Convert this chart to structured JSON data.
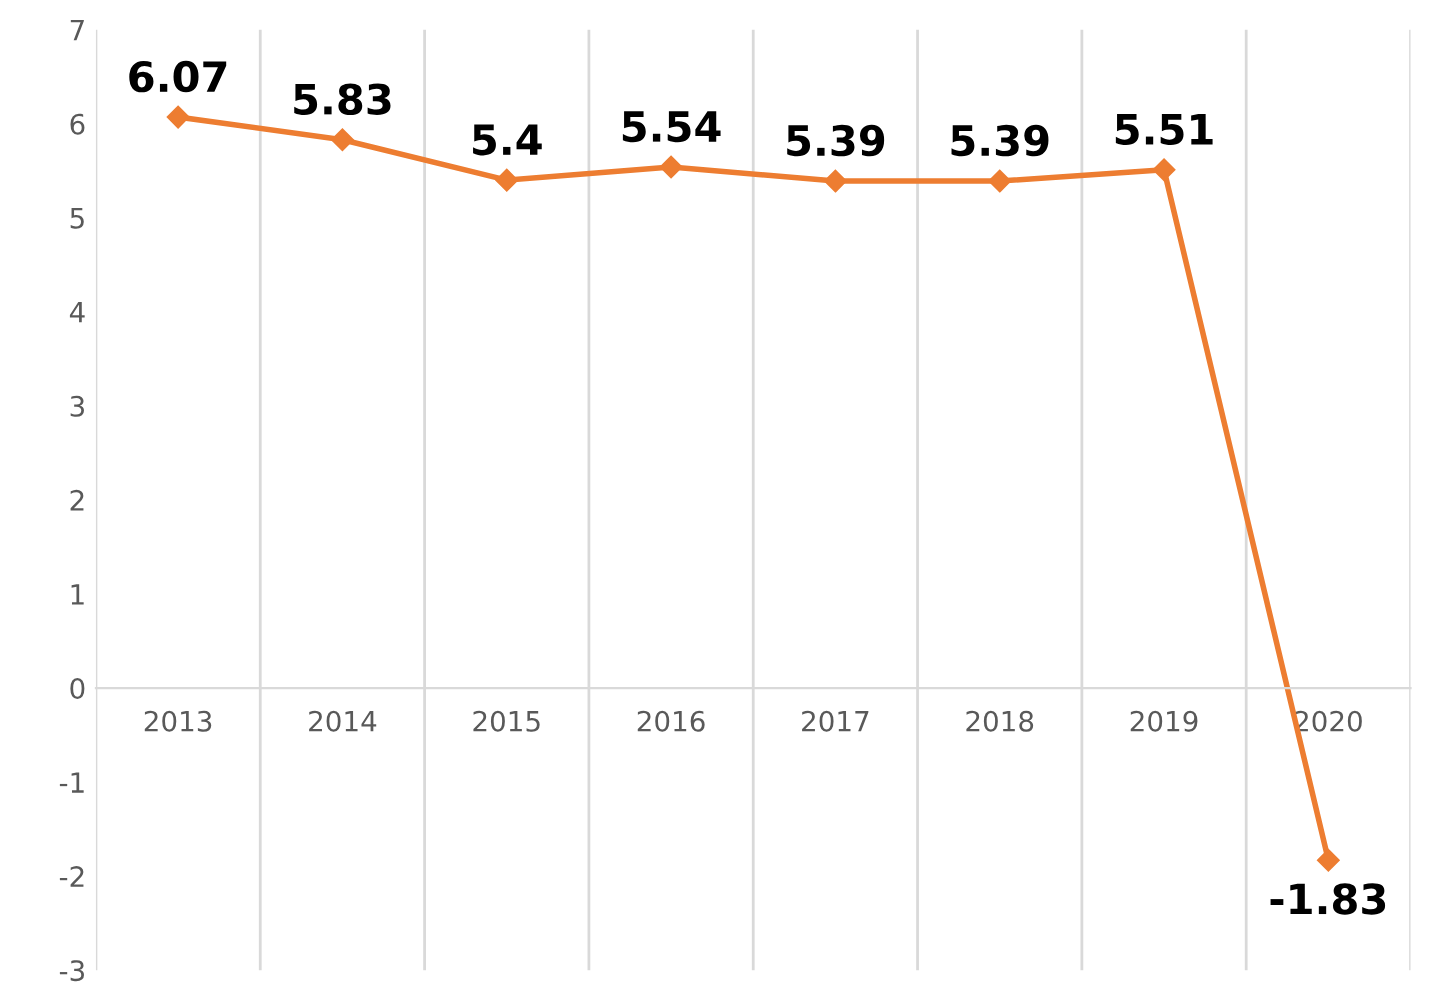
{
  "chart_data": {
    "type": "line",
    "categories": [
      "2013",
      "2014",
      "2015",
      "2016",
      "2017",
      "2018",
      "2019",
      "2020"
    ],
    "series": [
      {
        "color": "#ed7d31",
        "values": [
          6.07,
          5.83,
          5.4,
          5.54,
          5.39,
          5.39,
          5.51,
          -1.83
        ]
      }
    ],
    "ylim": [
      -3,
      7
    ],
    "yticks": [
      -3,
      -2,
      -1,
      0,
      1,
      2,
      3,
      4,
      5,
      6,
      7
    ],
    "grid": "x",
    "marker": "diamond",
    "line_style": "solid",
    "data_labels": true
  }
}
